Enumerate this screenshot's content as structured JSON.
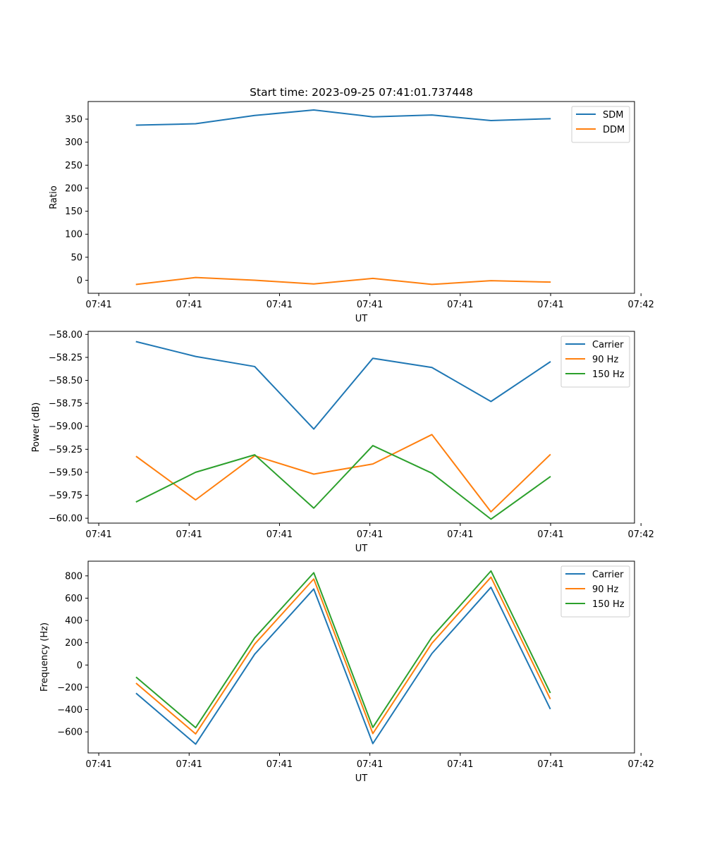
{
  "chart_data": [
    {
      "type": "line",
      "title": "Start time: 2023-09-25 07:41:01.737448",
      "xlabel": "UT",
      "ylabel": "Ratio",
      "x": [
        1,
        2,
        3,
        4,
        5,
        6,
        7,
        8
      ],
      "xlim": [
        0.18,
        9.43
      ],
      "x_ticks": [
        0.36,
        1.89,
        3.42,
        4.95,
        6.48,
        8.01,
        9.54
      ],
      "x_tick_labels": [
        "07:41",
        "07:41",
        "07:41",
        "07:41",
        "07:41",
        "07:41",
        "07:42"
      ],
      "ylim": [
        -28.3,
        388.3
      ],
      "y_ticks": [
        0,
        50,
        100,
        150,
        200,
        250,
        300,
        350
      ],
      "y_tick_labels": [
        "0",
        "50",
        "100",
        "150",
        "200",
        "250",
        "300",
        "350"
      ],
      "legend_position": "top-right",
      "series": [
        {
          "name": "SDM",
          "color": "#1f77b4",
          "values": [
            337,
            340,
            358,
            370,
            355,
            359,
            347,
            351
          ]
        },
        {
          "name": "DDM",
          "color": "#ff7f0e",
          "values": [
            -9,
            6,
            0,
            -8,
            4,
            -9,
            -1,
            -4
          ]
        }
      ]
    },
    {
      "type": "line",
      "title": "",
      "xlabel": "UT",
      "ylabel": "Power (dB)",
      "x": [
        1,
        2,
        3,
        4,
        5,
        6,
        7,
        8
      ],
      "xlim": [
        0.18,
        9.43
      ],
      "x_ticks": [
        0.36,
        1.89,
        3.42,
        4.95,
        6.48,
        8.01,
        9.54
      ],
      "x_tick_labels": [
        "07:41",
        "07:41",
        "07:41",
        "07:41",
        "07:41",
        "07:41",
        "07:42"
      ],
      "ylim": [
        -60.053,
        -57.967
      ],
      "y_ticks": [
        -60.0,
        -59.75,
        -59.5,
        -59.25,
        -59.0,
        -58.75,
        -58.5,
        -58.25,
        -58.0
      ],
      "y_tick_labels": [
        "−60.00",
        "−59.75",
        "−59.50",
        "−59.25",
        "−59.00",
        "−58.75",
        "−58.50",
        "−58.25",
        "−58.00"
      ],
      "legend_position": "top-right",
      "series": [
        {
          "name": "Carrier",
          "color": "#1f77b4",
          "values": [
            -58.08,
            -58.24,
            -58.35,
            -59.03,
            -58.26,
            -58.36,
            -58.73,
            -58.3
          ]
        },
        {
          "name": "90 Hz",
          "color": "#ff7f0e",
          "values": [
            -59.33,
            -59.8,
            -59.32,
            -59.52,
            -59.41,
            -59.09,
            -59.93,
            -59.31
          ]
        },
        {
          "name": "150 Hz",
          "color": "#2ca02c",
          "values": [
            -59.82,
            -59.5,
            -59.31,
            -59.89,
            -59.21,
            -59.51,
            -60.01,
            -59.55
          ]
        }
      ]
    },
    {
      "type": "line",
      "title": "",
      "xlabel": "UT",
      "ylabel": "Frequency (Hz)",
      "x": [
        1,
        2,
        3,
        4,
        5,
        6,
        7,
        8
      ],
      "xlim": [
        0.18,
        9.43
      ],
      "x_ticks": [
        0.36,
        1.89,
        3.42,
        4.95,
        6.48,
        8.01,
        9.54
      ],
      "x_tick_labels": [
        "07:41",
        "07:41",
        "07:41",
        "07:41",
        "07:41",
        "07:41",
        "07:42"
      ],
      "ylim": [
        -788.9,
        931.7
      ],
      "y_ticks": [
        -600,
        -400,
        -200,
        0,
        200,
        400,
        600,
        800
      ],
      "y_tick_labels": [
        "−600",
        "−400",
        "−200",
        "0",
        "200",
        "400",
        "600",
        "800"
      ],
      "legend_position": "top-right",
      "series": [
        {
          "name": "Carrier",
          "color": "#1f77b4",
          "values": [
            -257,
            -710,
            97,
            682,
            -705,
            103,
            697,
            -390
          ]
        },
        {
          "name": "90 Hz",
          "color": "#ff7f0e",
          "values": [
            -167,
            -618,
            188,
            772,
            -615,
            195,
            788,
            -300
          ]
        },
        {
          "name": "150 Hz",
          "color": "#2ca02c",
          "values": [
            -112,
            -562,
            244,
            828,
            -560,
            251,
            844,
            -245
          ]
        }
      ]
    }
  ]
}
